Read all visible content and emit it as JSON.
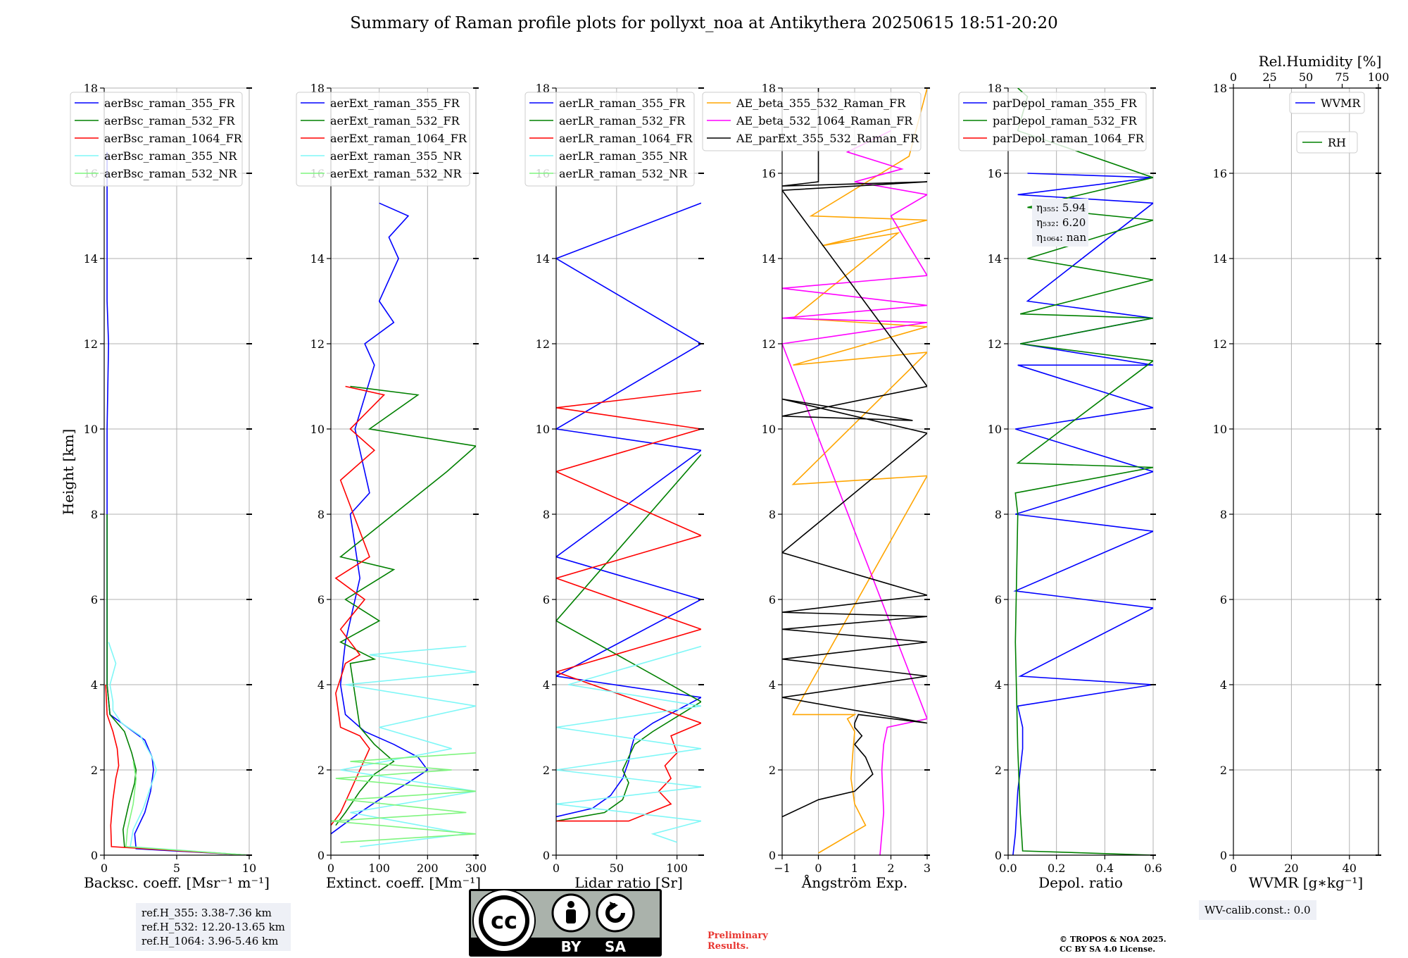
{
  "title": "Summary of Raman profile plots for pollyxt_noa at Antikythera 20250615 18:51-20:20",
  "y_axis_label": "Height [km]",
  "reference_heights": [
    "ref.H_355: 3.38-7.36 km",
    "ref.H_532: 12.20-13.65 km",
    "ref.H_1064: 3.96-5.46 km"
  ],
  "wv_calibration": "WV-calib.const.: 0.0",
  "preliminary_note": [
    "Preliminary",
    "Results."
  ],
  "copyright": [
    "© TROPOS & NOA 2025.",
    "CC BY SA 4.0 License."
  ],
  "license_badge": {
    "by": "BY",
    "sa": "SA"
  },
  "colors": {
    "blue": "#0000ff",
    "green": "#008000",
    "red": "#ff0000",
    "cyan": "#7ff7f7",
    "lightgreen": "#7ff57f",
    "orange": "#ffa500",
    "magenta": "#ff00ff",
    "black": "#000000"
  },
  "chart_data": [
    {
      "type": "line",
      "xlabel": "Backsc. coeff. [Msr⁻¹ m⁻¹]",
      "ylabel": "Height [km]",
      "xlim": [
        0,
        10
      ],
      "ylim": [
        0,
        18
      ],
      "xticks": [
        0,
        5,
        10
      ],
      "yticks": [
        0,
        2,
        4,
        6,
        8,
        10,
        12,
        14,
        16,
        18
      ],
      "grid": true,
      "legend_position": "top-left",
      "series": [
        {
          "name": "aerBsc_raman_355_FR",
          "color": "blue",
          "x": [
            10,
            2.2,
            2.1,
            2.8,
            3.2,
            3.4,
            3.3,
            2.8,
            1.6,
            0.4,
            0.2,
            0.2,
            0.2,
            0.2,
            0.3,
            0.2,
            0.2,
            0.2,
            0.2
          ],
          "y": [
            0,
            0.15,
            0.5,
            1.0,
            1.5,
            2.0,
            2.3,
            2.7,
            3.0,
            3.3,
            4.0,
            6.0,
            8.0,
            10.0,
            12.0,
            13.0,
            14.0,
            15.0,
            16.5
          ]
        },
        {
          "name": "aerBsc_raman_532_FR",
          "color": "green",
          "x": [
            10,
            1.4,
            1.3,
            1.7,
            2.1,
            2.2,
            1.9,
            1.4,
            0.4,
            0.2,
            0.2,
            0.2
          ],
          "y": [
            0,
            0.2,
            0.6,
            1.2,
            1.7,
            2.0,
            2.4,
            2.9,
            3.3,
            4.0,
            6.0,
            8.0
          ]
        },
        {
          "name": "aerBsc_raman_1064_FR",
          "color": "red",
          "x": [
            10,
            0.5,
            0.45,
            0.6,
            0.8,
            1.0,
            0.9,
            0.6,
            0.2,
            0.1
          ],
          "y": [
            0,
            0.2,
            0.7,
            1.3,
            1.8,
            2.1,
            2.5,
            2.9,
            3.3,
            4.0
          ]
        },
        {
          "name": "aerBsc_raman_355_NR",
          "color": "cyan",
          "x": [
            10,
            1.8,
            2.0,
            2.7,
            3.2,
            3.6,
            3.3,
            2.5,
            1.2,
            0.6,
            0.6,
            0.4,
            0.8,
            0.3
          ],
          "y": [
            0,
            0.2,
            0.6,
            1.1,
            1.6,
            2.0,
            2.3,
            2.8,
            3.1,
            3.4,
            3.6,
            4.0,
            4.5,
            5.0
          ]
        },
        {
          "name": "aerBsc_raman_532_NR",
          "color": "lightgreen",
          "x": [
            10,
            1.5,
            1.6,
            2.0,
            2.2,
            2.0
          ],
          "y": [
            0,
            0.2,
            0.6,
            1.2,
            1.8,
            2.2
          ]
        }
      ]
    },
    {
      "type": "line",
      "xlabel": "Extinct. coeff. [Mm⁻¹]",
      "xlim": [
        0,
        300
      ],
      "ylim": [
        0,
        18
      ],
      "xticks": [
        0,
        100,
        200,
        300
      ],
      "yticks": [
        0,
        2,
        4,
        6,
        8,
        10,
        12,
        14,
        16,
        18
      ],
      "grid": true,
      "legend_position": "top-left",
      "series": [
        {
          "name": "aerExt_raman_355_FR",
          "color": "blue",
          "x": [
            0,
            60,
            100,
            160,
            200,
            180,
            130,
            70,
            30,
            20,
            30,
            60,
            40,
            80,
            50,
            90,
            70,
            130,
            100,
            140,
            120,
            160,
            100
          ],
          "y": [
            0.5,
            1.0,
            1.3,
            1.7,
            2.0,
            2.3,
            2.6,
            2.9,
            3.3,
            4.0,
            5.0,
            6.5,
            8.0,
            8.5,
            10.0,
            11.5,
            12.0,
            12.5,
            13.0,
            14.0,
            14.5,
            15.0,
            15.3
          ]
        },
        {
          "name": "aerExt_raman_532_FR",
          "color": "green",
          "x": [
            10,
            30,
            60,
            90,
            130,
            90,
            60,
            40,
            90,
            20,
            100,
            30,
            130,
            20,
            240,
            300,
            80,
            180,
            40
          ],
          "y": [
            0.7,
            1.0,
            1.5,
            1.9,
            2.2,
            2.6,
            3.0,
            4.5,
            4.6,
            5.0,
            5.5,
            6.0,
            6.7,
            7.0,
            9.0,
            9.6,
            10.0,
            10.8,
            11.0
          ]
        },
        {
          "name": "aerExt_raman_1064_FR",
          "color": "red",
          "x": [
            0,
            20,
            40,
            60,
            80,
            60,
            20,
            10,
            30,
            60,
            20,
            70,
            10,
            80,
            20,
            90,
            40,
            110,
            30
          ],
          "y": [
            0.7,
            1.0,
            1.5,
            2.0,
            2.5,
            2.8,
            3.0,
            3.8,
            4.5,
            4.7,
            5.3,
            6.0,
            6.5,
            7.0,
            8.8,
            9.5,
            10.0,
            10.8,
            11.0
          ]
        },
        {
          "name": "aerExt_raman_355_NR",
          "color": "cyan",
          "x": [
            60,
            280,
            40,
            300,
            20,
            250,
            100,
            300,
            30,
            300,
            80,
            280
          ],
          "y": [
            0.2,
            0.5,
            1.0,
            1.5,
            2.0,
            2.5,
            3.0,
            3.5,
            4.0,
            4.3,
            4.7,
            4.9
          ]
        },
        {
          "name": "aerExt_raman_532_NR",
          "color": "lightgreen",
          "x": [
            20,
            300,
            0,
            280,
            30,
            300,
            10,
            250,
            40,
            300
          ],
          "y": [
            0.3,
            0.5,
            0.8,
            1.0,
            1.3,
            1.5,
            1.8,
            2.0,
            2.2,
            2.4
          ]
        }
      ]
    },
    {
      "type": "line",
      "xlabel": "Lidar ratio [Sr]",
      "xlim": [
        0,
        120
      ],
      "ylim": [
        0,
        18
      ],
      "xticks": [
        0,
        50,
        100
      ],
      "yticks": [
        0,
        2,
        4,
        6,
        8,
        10,
        12,
        14,
        16,
        18
      ],
      "grid": true,
      "legend_position": "top-left",
      "series": [
        {
          "name": "aerLR_raman_355_FR",
          "color": "blue",
          "x": [
            0,
            30,
            45,
            55,
            60,
            62,
            65,
            70,
            75,
            80,
            120,
            0,
            120,
            0,
            120,
            0,
            120,
            0,
            120
          ],
          "y": [
            0.9,
            1.1,
            1.4,
            1.8,
            2.2,
            2.5,
            2.8,
            2.9,
            3.0,
            3.1,
            3.7,
            4.2,
            6.0,
            7.0,
            9.5,
            10.0,
            12.0,
            14.0,
            15.3
          ]
        },
        {
          "name": "aerLR_raman_532_FR",
          "color": "green",
          "x": [
            0,
            40,
            55,
            60,
            55,
            60,
            65,
            80,
            120,
            0,
            120
          ],
          "y": [
            0.8,
            1.0,
            1.3,
            1.7,
            2.0,
            2.3,
            2.6,
            2.9,
            3.6,
            5.5,
            9.4
          ]
        },
        {
          "name": "aerLR_raman_1064_FR",
          "color": "red",
          "x": [
            0,
            60,
            95,
            85,
            95,
            90,
            100,
            95,
            120,
            0,
            120,
            0,
            120,
            0,
            120,
            0,
            120
          ],
          "y": [
            0.8,
            0.8,
            1.2,
            1.5,
            1.8,
            2.1,
            2.4,
            2.8,
            3.1,
            4.3,
            5.3,
            6.5,
            7.5,
            9.0,
            10.0,
            10.5,
            10.9
          ]
        },
        {
          "name": "aerLR_raman_355_NR",
          "color": "cyan",
          "x": [
            100,
            80,
            120,
            0,
            120,
            0,
            120,
            0,
            120,
            10,
            120
          ],
          "y": [
            0.3,
            0.5,
            0.8,
            1.2,
            1.6,
            2.0,
            2.5,
            3.0,
            3.5,
            4.0,
            4.9
          ]
        },
        {
          "name": "aerLR_raman_532_NR",
          "color": "lightgreen",
          "x": [],
          "y": []
        }
      ]
    },
    {
      "type": "line",
      "xlabel": "Ångström Exp.",
      "xlim": [
        -1,
        3
      ],
      "ylim": [
        0,
        18
      ],
      "xticks": [
        -1,
        0,
        1,
        2,
        3
      ],
      "yticks": [
        0,
        2,
        4,
        6,
        8,
        10,
        12,
        14,
        16,
        18
      ],
      "grid": true,
      "legend_position": "top-left",
      "series": [
        {
          "name": "AE_beta_355_532_Raman_FR",
          "color": "orange",
          "x": [
            0.0,
            0.9,
            1.3,
            1.0,
            0.9,
            0.95,
            1.0,
            0.8,
            1.0,
            -0.7,
            3,
            -0.7,
            3,
            -0.7,
            3,
            -0.7,
            2.2,
            0.1,
            3,
            -0.2,
            2.5,
            3
          ],
          "y": [
            0.05,
            0.5,
            0.7,
            1.2,
            1.8,
            2.4,
            2.9,
            3.2,
            3.3,
            3.3,
            8.9,
            8.7,
            11.8,
            11.5,
            12.4,
            12.6,
            14.6,
            14.3,
            14.9,
            15.0,
            16.4,
            18.0
          ]
        },
        {
          "name": "AE_beta_532_1064_Raman_FR",
          "color": "magenta",
          "x": [
            1.7,
            1.8,
            1.75,
            1.8,
            1.9,
            3.0,
            -1,
            3,
            -1,
            3,
            -1,
            3,
            2.0,
            3.0,
            1.0,
            2.3,
            0.8,
            2.0
          ],
          "y": [
            0.0,
            1.0,
            2.0,
            2.6,
            3.0,
            3.2,
            12.0,
            12.5,
            12.6,
            12.9,
            13.3,
            13.6,
            15.0,
            15.5,
            15.8,
            16.1,
            16.5,
            17.0
          ]
        },
        {
          "name": "AE_parExt_355_532_Raman_FR",
          "color": "black",
          "x": [
            -1,
            0.0,
            1.0,
            1.5,
            1.3,
            1.0,
            1.2,
            1.0,
            1.0,
            1.1,
            3,
            -1,
            3,
            -1,
            3,
            -1,
            3,
            -1,
            3,
            -1,
            3,
            -1,
            2.6,
            -1,
            3,
            -1,
            3,
            -1,
            0.0,
            0.0,
            0.0
          ],
          "y": [
            0.9,
            1.3,
            1.5,
            1.9,
            2.3,
            2.6,
            2.8,
            3.0,
            3.1,
            3.3,
            3.1,
            3.7,
            4.2,
            4.6,
            5.0,
            5.3,
            5.6,
            5.7,
            6.1,
            7.1,
            9.9,
            10.7,
            10.2,
            10.3,
            11.0,
            15.6,
            15.8,
            15.7,
            15.8,
            16.5,
            18.0
          ]
        }
      ]
    },
    {
      "type": "line",
      "xlabel": "Depol. ratio",
      "xlim": [
        0,
        0.6
      ],
      "ylim": [
        0,
        18
      ],
      "xticks": [
        0.0,
        0.2,
        0.4,
        0.6
      ],
      "yticks": [
        0,
        2,
        4,
        6,
        8,
        10,
        12,
        14,
        16,
        18
      ],
      "grid": true,
      "legend_position": "top-left",
      "annotations": [
        "η₃₅₅: 5.94",
        "η₅₃₂: 6.20",
        "η₁₀₆₄: nan"
      ],
      "series": [
        {
          "name": "parDepol_raman_355_FR",
          "color": "blue",
          "x": [
            0.02,
            0.03,
            0.04,
            0.06,
            0.06,
            0.04,
            0.6,
            0.05,
            0.6,
            0.03,
            0.6,
            0.03,
            0.6,
            0.03,
            0.6,
            0.04,
            0.6,
            0.05,
            0.6,
            0.08,
            0.6,
            0.04,
            0.6,
            0.08
          ],
          "y": [
            0.0,
            0.5,
            1.5,
            2.5,
            3.0,
            3.5,
            4.0,
            4.2,
            5.8,
            6.2,
            7.6,
            8.0,
            9.0,
            10.0,
            10.5,
            11.5,
            11.5,
            12.0,
            12.6,
            13.0,
            15.3,
            15.5,
            15.9,
            16.0
          ]
        },
        {
          "name": "parDepol_raman_532_FR",
          "color": "green",
          "x": [
            0.6,
            0.06,
            0.05,
            0.04,
            0.03,
            0.04,
            0.03,
            0.6,
            0.04,
            0.6,
            0.05,
            0.6,
            0.05,
            0.6,
            0.08,
            0.6,
            0.08,
            0.6,
            0.04,
            0.08,
            0.04
          ],
          "y": [
            0.0,
            0.1,
            1.0,
            2.5,
            5.0,
            8.0,
            8.5,
            9.1,
            9.2,
            11.6,
            12.0,
            12.6,
            12.7,
            13.5,
            14.0,
            14.9,
            15.2,
            15.9,
            17.0,
            17.8,
            18.0
          ]
        },
        {
          "name": "parDepol_raman_1064_FR",
          "color": "red",
          "x": [],
          "y": []
        }
      ]
    },
    {
      "type": "line",
      "xlabel": "WVMR [g∗kg⁻¹]",
      "x2label": "Rel.Humidity [%]",
      "xlim": [
        0,
        50
      ],
      "x2lim": [
        0,
        100
      ],
      "ylim": [
        0,
        18
      ],
      "xticks": [
        0,
        20,
        40
      ],
      "x2ticks": [
        0,
        25,
        50,
        75,
        100
      ],
      "yticks": [
        0,
        2,
        4,
        6,
        8,
        10,
        12,
        14,
        16,
        18
      ],
      "grid": true,
      "legend_position": "top-right",
      "series": [
        {
          "name": "WVMR",
          "color": "blue",
          "x": [],
          "y": []
        },
        {
          "name": "RH",
          "color": "green",
          "x": [],
          "y": []
        }
      ]
    }
  ]
}
